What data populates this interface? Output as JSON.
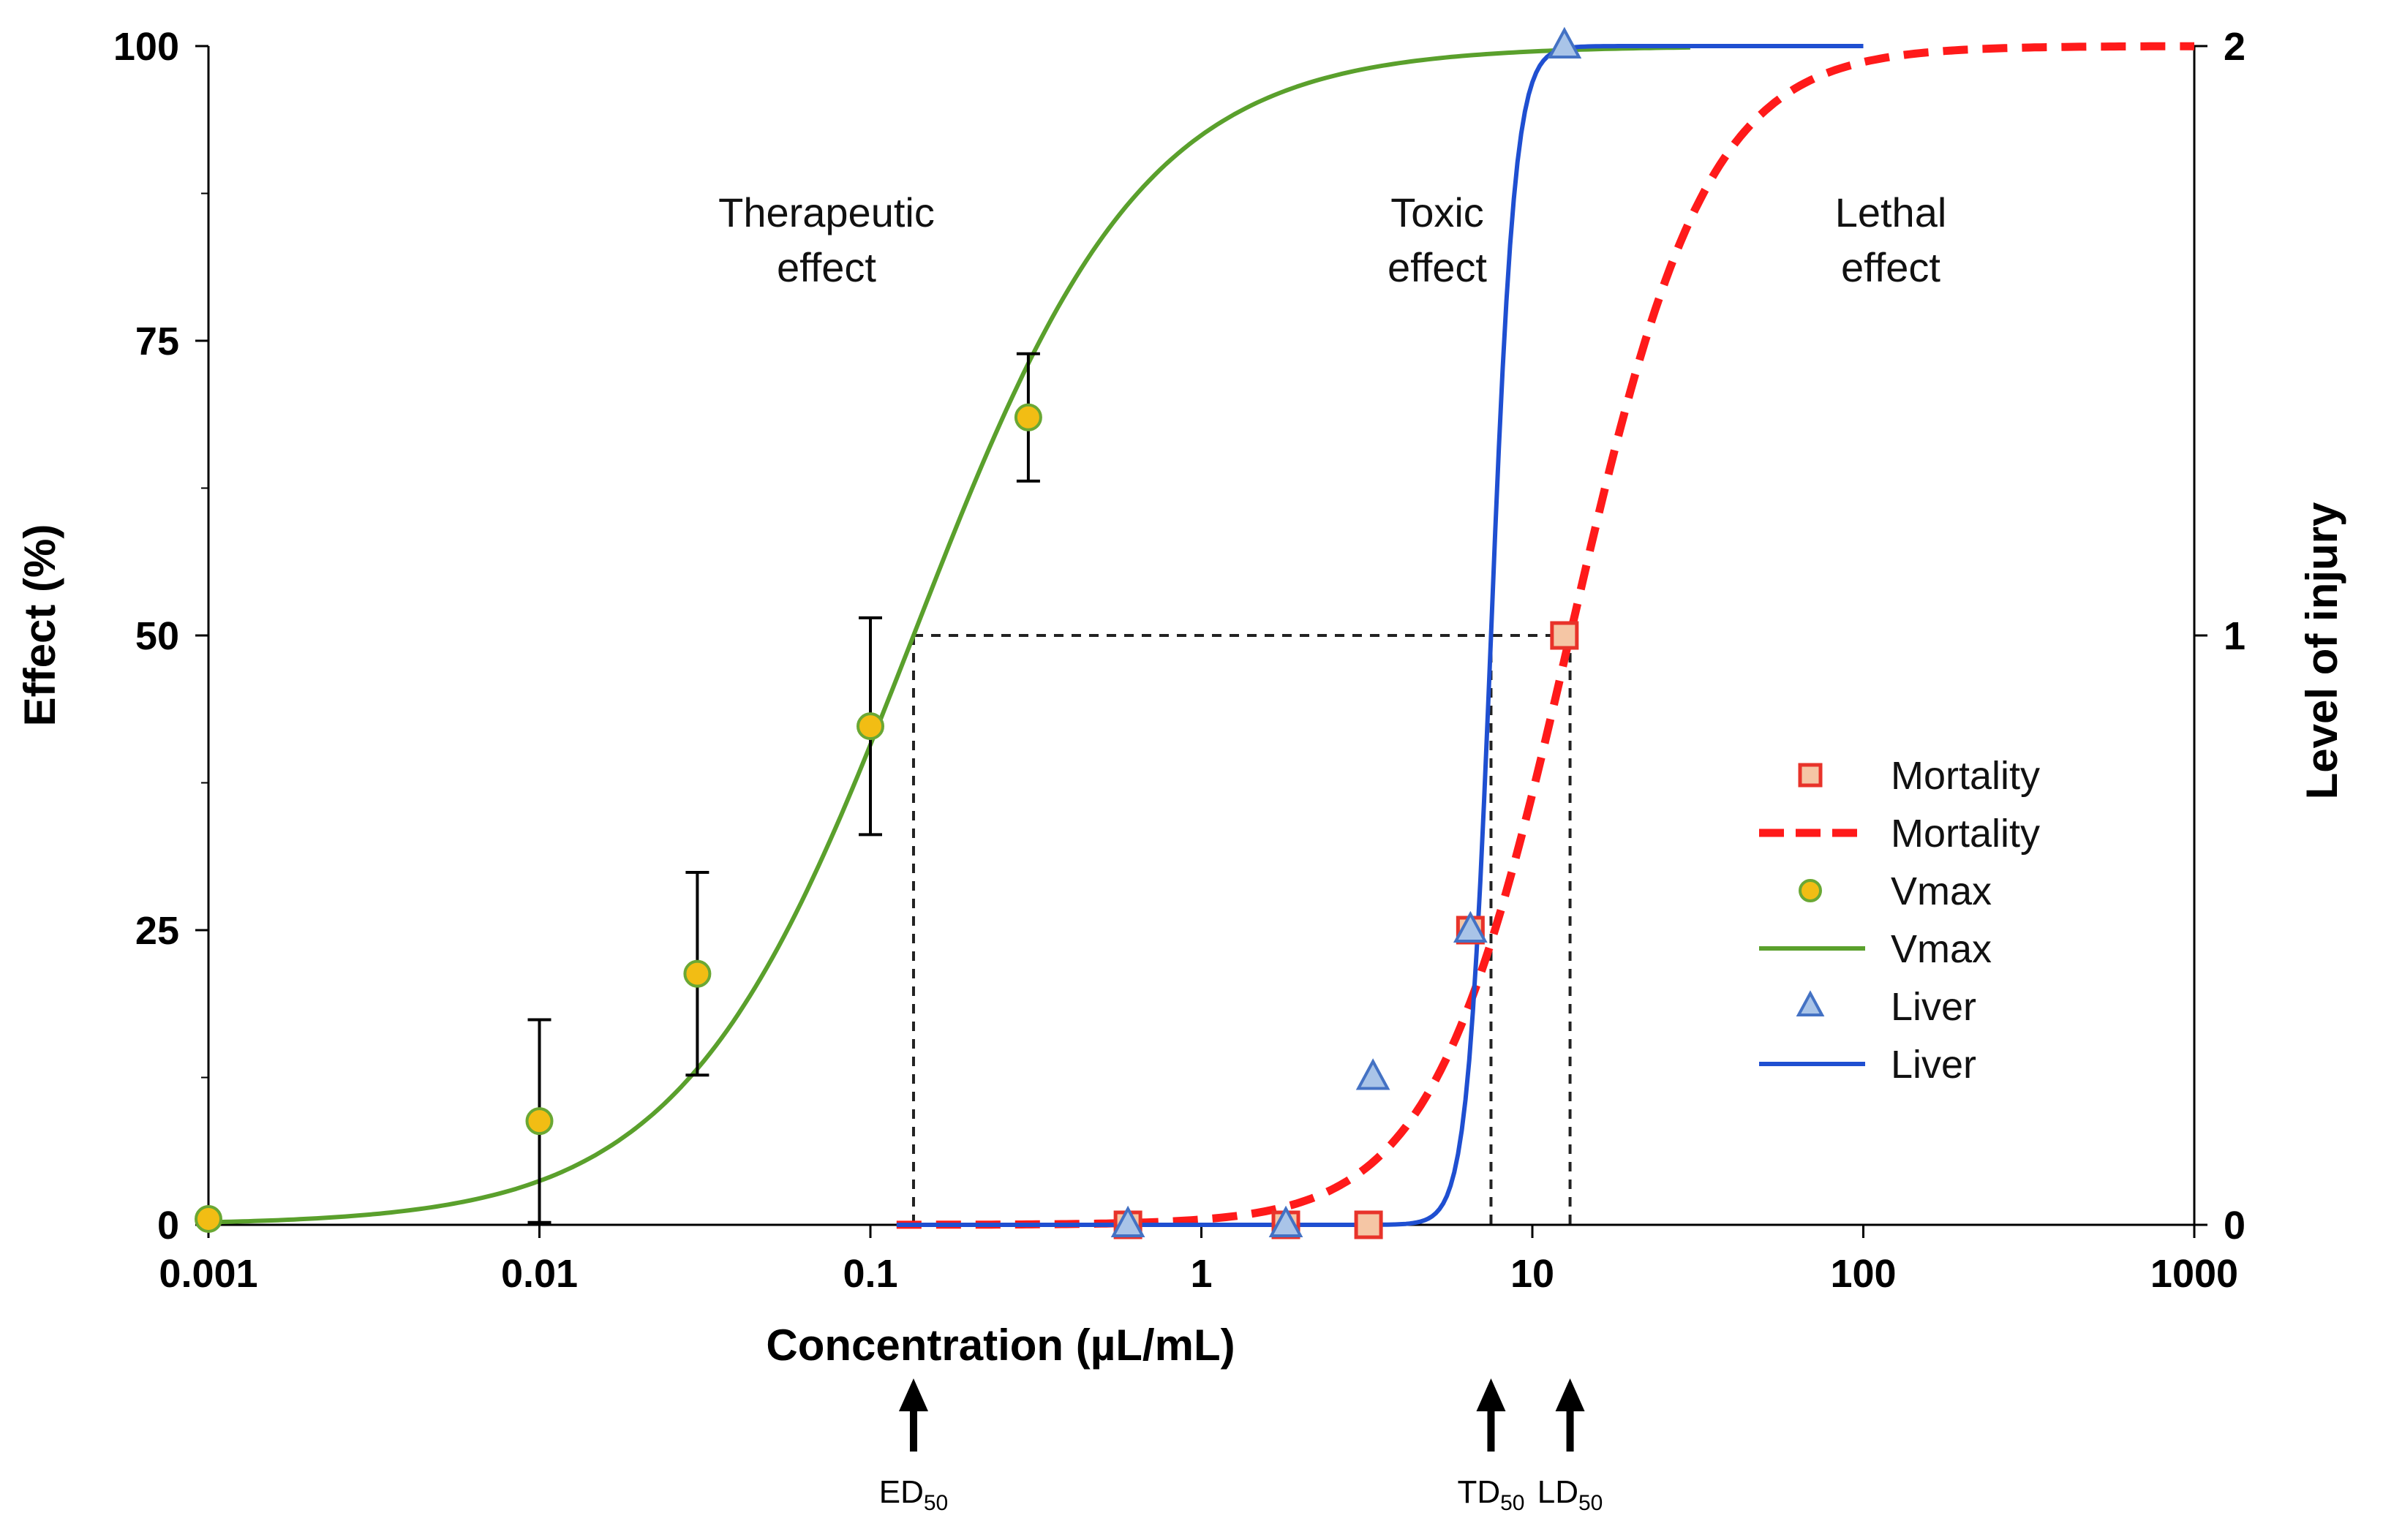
{
  "chart_data": {
    "type": "scatter",
    "title": "",
    "xlabel": "Concentration (µL/mL)",
    "ylabel": "Effect (%)",
    "y2label": "Level of injury",
    "xscale": "log",
    "xlim": [
      0.001,
      1000
    ],
    "ylim": [
      0,
      100
    ],
    "y2lim": [
      0,
      2
    ],
    "xticks": [
      "0.001",
      "0.01",
      "0.1",
      "1",
      "10",
      "100",
      "1000"
    ],
    "yticks": [
      "0",
      "25",
      "50",
      "75",
      "100"
    ],
    "y2ticks": [
      "0",
      "1",
      "2"
    ],
    "legend_position": "right",
    "series": [
      {
        "name": "Mortality",
        "kind": "marker",
        "marker": "square",
        "color": "#e8332a",
        "fill": "#f5c6a5",
        "axis": "left",
        "points": [
          [
            0.6,
            0
          ],
          [
            1.8,
            0
          ],
          [
            3.2,
            0
          ],
          [
            6.5,
            25
          ],
          [
            12.5,
            50
          ]
        ]
      },
      {
        "name": "Mortality",
        "kind": "line",
        "style": "dashed",
        "color": "#ff1a1a",
        "axis": "left",
        "model": {
          "ec50": 13,
          "hill": 2.1,
          "xmin": 0.12,
          "xmax": 1000
        }
      },
      {
        "name": "Vmax",
        "kind": "marker",
        "marker": "circle",
        "color": "#6aa834",
        "fill": "#f2bd14",
        "axis": "left",
        "points": [
          [
            0.001,
            0.5
          ],
          [
            0.01,
            8.8
          ],
          [
            0.03,
            21.3
          ],
          [
            0.1,
            42.3
          ],
          [
            0.3,
            68.5
          ]
        ],
        "errors": [
          null,
          8.6,
          8.6,
          9.2,
          5.4
        ]
      },
      {
        "name": "Vmax",
        "kind": "line",
        "style": "solid",
        "color": "#5aa02c",
        "axis": "left",
        "model": {
          "ec50": 0.135,
          "hill": 1.25,
          "xmin": 0.001,
          "xmax": 30
        }
      },
      {
        "name": "Liver",
        "kind": "marker",
        "marker": "triangle",
        "color": "#4472c4",
        "fill": "#a9c4e8",
        "axis": "right",
        "points": [
          [
            0.6,
            0
          ],
          [
            1.8,
            0
          ],
          [
            3.3,
            0.25
          ],
          [
            6.5,
            0.5
          ],
          [
            12.5,
            2
          ]
        ]
      },
      {
        "name": "Liver",
        "kind": "line",
        "style": "solid",
        "color": "#1f4fd1",
        "axis": "right",
        "model": {
          "ec50": 7.5,
          "hill": 12,
          "xmin": 0.12,
          "xmax": 100,
          "max": 2
        }
      }
    ],
    "reference_lines": {
      "effect_level": 50,
      "ed50": 0.135,
      "td50": 7.5,
      "ld50": 13
    },
    "annotations": {
      "therapeutic": [
        "Therapeutic",
        "effect"
      ],
      "toxic": [
        "Toxic",
        "effect"
      ],
      "lethal": [
        "Lethal",
        "effect"
      ]
    },
    "arrows": [
      {
        "main": "ED",
        "sub": "50",
        "x": 0.135
      },
      {
        "main": "TD",
        "sub": "50",
        "x": 7.5
      },
      {
        "main": "LD",
        "sub": "50",
        "x": 13
      }
    ]
  }
}
